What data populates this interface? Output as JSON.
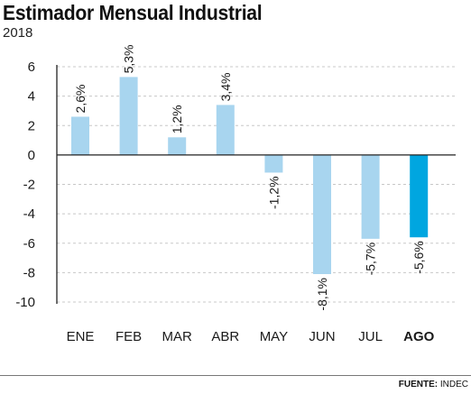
{
  "title": "Estimador Mensual Industrial",
  "subtitle": "2018",
  "source_label": "FUENTE:",
  "source_value": "INDEC",
  "colors": {
    "bar": "#a8d5ef",
    "highlight": "#00a6e0",
    "grid": "#c8c8c8",
    "axis": "#222222",
    "text": "#1a1a1a"
  },
  "chart_data": {
    "type": "bar",
    "title": "Estimador Mensual Industrial",
    "subtitle": "2018",
    "categories": [
      "ENE",
      "FEB",
      "MAR",
      "ABR",
      "MAY",
      "JUN",
      "JUL",
      "AGO"
    ],
    "values": [
      2.6,
      5.3,
      1.2,
      3.4,
      -1.2,
      -8.1,
      -5.7,
      -5.6
    ],
    "value_labels": [
      "2,6%",
      "5,3%",
      "1,2%",
      "3,4%",
      "-1,2%",
      "-8,1%",
      "-5,7%",
      "-5,6%"
    ],
    "highlight_category": "AGO",
    "y_ticks": [
      6,
      4,
      2,
      0,
      -2,
      -4,
      -6,
      -8,
      -10
    ],
    "y_tick_labels": [
      "6",
      "4",
      "2",
      "0",
      "-2",
      "-4",
      "-6",
      "-8",
      "-10"
    ],
    "ylim": [
      -10,
      6
    ],
    "xlabel": "",
    "ylabel": "",
    "grid": "dashed horizontal",
    "legend": "none"
  }
}
